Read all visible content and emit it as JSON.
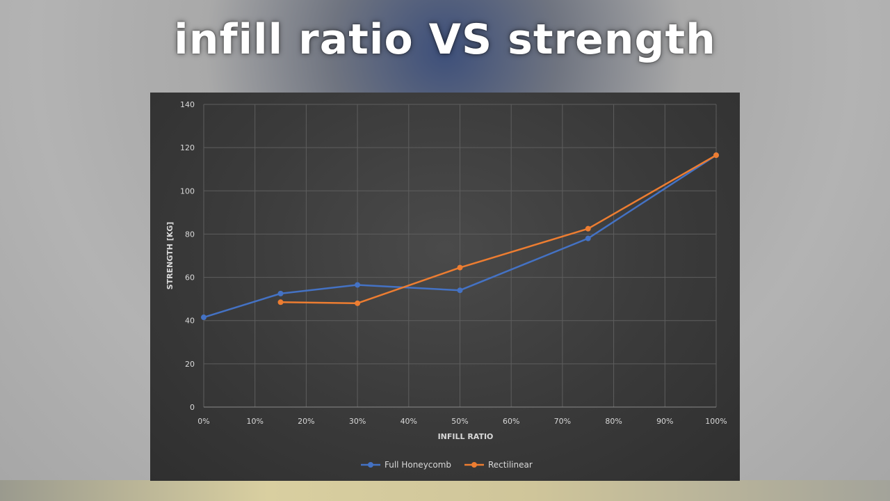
{
  "page": {
    "title": "infill ratio VS strength"
  },
  "chart_data": {
    "type": "line",
    "title": "",
    "xlabel": "INFILL RATIO",
    "ylabel": "STRENGTH [KG]",
    "xlim": [
      0,
      100
    ],
    "ylim": [
      0,
      140
    ],
    "x_ticks": [
      0,
      10,
      20,
      30,
      40,
      50,
      60,
      70,
      80,
      90,
      100
    ],
    "x_tick_labels": [
      "0%",
      "10%",
      "20%",
      "30%",
      "40%",
      "50%",
      "60%",
      "70%",
      "80%",
      "90%",
      "100%"
    ],
    "y_ticks": [
      0,
      20,
      40,
      60,
      80,
      100,
      120,
      140
    ],
    "y_tick_labels": [
      "0",
      "20",
      "40",
      "60",
      "80",
      "100",
      "120",
      "140"
    ],
    "grid": true,
    "legend_position": "bottom",
    "series": [
      {
        "name": "Full Honeycomb",
        "color": "#4472c4",
        "x": [
          0,
          15,
          30,
          50,
          75,
          100
        ],
        "y": [
          41.5,
          52.5,
          56.5,
          54,
          78,
          116.5
        ]
      },
      {
        "name": "Rectilinear",
        "color": "#ed7d31",
        "x": [
          15,
          30,
          50,
          75,
          100
        ],
        "y": [
          48.5,
          48,
          64.5,
          82.5,
          116.5
        ]
      }
    ]
  }
}
